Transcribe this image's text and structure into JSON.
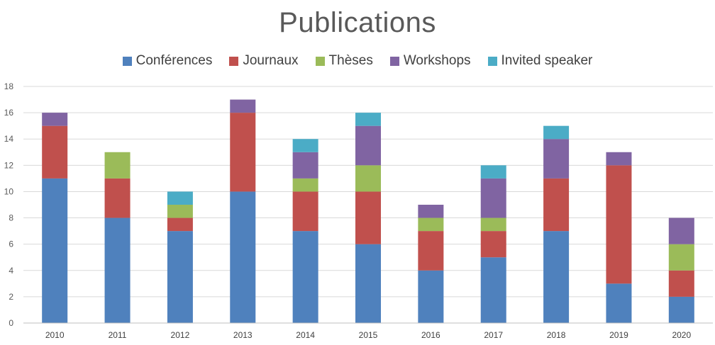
{
  "chart_data": {
    "type": "bar",
    "stacked": true,
    "title": "Publications",
    "categories": [
      "2010",
      "2011",
      "2012",
      "2013",
      "2014",
      "2015",
      "2016",
      "2017",
      "2018",
      "2019",
      "2020"
    ],
    "series": [
      {
        "name": "Conférences",
        "color": "#4f81bd",
        "values": [
          11,
          8,
          7,
          10,
          7,
          6,
          4,
          5,
          7,
          3,
          2
        ]
      },
      {
        "name": "Journaux",
        "color": "#c0504d",
        "values": [
          4,
          3,
          1,
          6,
          3,
          4,
          3,
          2,
          4,
          9,
          2
        ]
      },
      {
        "name": "Thèses",
        "color": "#9bbb59",
        "values": [
          0,
          2,
          1,
          0,
          1,
          2,
          1,
          1,
          0,
          0,
          2
        ]
      },
      {
        "name": "Workshops",
        "color": "#8064a2",
        "values": [
          1,
          0,
          0,
          1,
          2,
          3,
          1,
          3,
          3,
          1,
          2
        ]
      },
      {
        "name": "Invited speaker",
        "color": "#4bacc6",
        "values": [
          0,
          0,
          1,
          0,
          1,
          1,
          0,
          1,
          1,
          0,
          0
        ]
      }
    ],
    "ylim": [
      0,
      18
    ],
    "yticks": [
      0,
      2,
      4,
      6,
      8,
      10,
      12,
      14,
      16,
      18
    ],
    "grid": true,
    "legend_position": "top"
  }
}
